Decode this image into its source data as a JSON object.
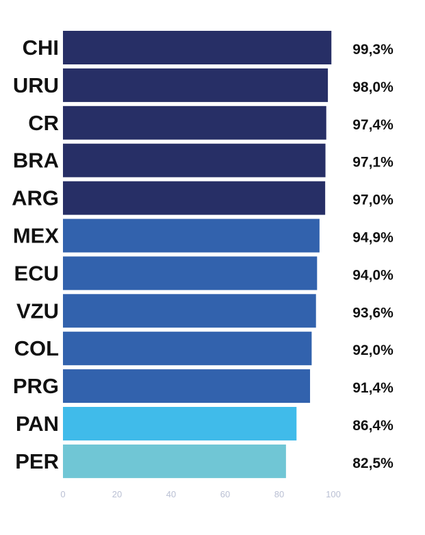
{
  "chart_data": {
    "type": "bar",
    "orientation": "horizontal",
    "categories": [
      "CHI",
      "URU",
      "CR",
      "BRA",
      "ARG",
      "MEX",
      "ECU",
      "VZU",
      "COL",
      "PRG",
      "PAN",
      "PER"
    ],
    "values": [
      99.3,
      98.0,
      97.4,
      97.1,
      97.0,
      94.9,
      94.0,
      93.6,
      92.0,
      91.4,
      86.4,
      82.5
    ],
    "value_labels": [
      "99,3%",
      "98,0%",
      "97,4%",
      "97,1%",
      "97,0%",
      "94,9%",
      "94,0%",
      "93,6%",
      "92,0%",
      "91,4%",
      "86,4%",
      "82,5%"
    ],
    "bar_colors": [
      "#272f66",
      "#272f66",
      "#272f66",
      "#272f66",
      "#272f66",
      "#3262ad",
      "#3262ad",
      "#3262ad",
      "#3262ad",
      "#3262ad",
      "#40bbea",
      "#70c6d5"
    ],
    "xlim": [
      0,
      100
    ],
    "x_ticks": [
      0,
      20,
      40,
      60,
      80,
      100
    ],
    "grid": false,
    "title": "",
    "xlabel": "",
    "ylabel": ""
  }
}
